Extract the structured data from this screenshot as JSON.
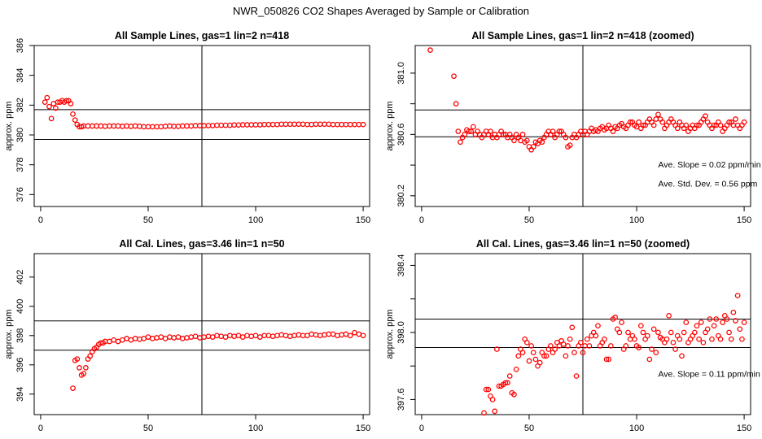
{
  "figure_title": "NWR_050826  CO2 Shapes Averaged by Sample or Calibration",
  "colors": {
    "points": "#ff0000",
    "axes": "#000000"
  },
  "chart_data": [
    {
      "type": "scatter",
      "title": "All Sample Lines, gas=1 lin=2 n=418",
      "xlabel": "",
      "ylabel": "approx. ppm",
      "xlim": [
        -3,
        153
      ],
      "ylim": [
        375.2,
        386.0
      ],
      "xticks": [
        0,
        50,
        100,
        150
      ],
      "yticks": [
        376,
        378,
        380,
        382,
        384,
        386
      ],
      "hlines": [
        381.7,
        379.7
      ],
      "vline": 75,
      "annotations": [],
      "series": [
        {
          "x": [
            2,
            3,
            4,
            5,
            6,
            7,
            8,
            9,
            10,
            11,
            12,
            13,
            14,
            15,
            16,
            17,
            18,
            19,
            20,
            22,
            24,
            26,
            28,
            30,
            32,
            34,
            36,
            38,
            40,
            42,
            44,
            46,
            48,
            50,
            52,
            54,
            56,
            58,
            60,
            62,
            64,
            66,
            68,
            70,
            72,
            74,
            76,
            78,
            80,
            82,
            84,
            86,
            88,
            90,
            92,
            94,
            96,
            98,
            100,
            102,
            104,
            106,
            108,
            110,
            112,
            114,
            116,
            118,
            120,
            122,
            124,
            126,
            128,
            130,
            132,
            134,
            136,
            138,
            140,
            142,
            144,
            146,
            148,
            150
          ],
          "y": [
            382.2,
            382.5,
            381.9,
            381.1,
            382.1,
            381.8,
            382.2,
            382.2,
            382.3,
            382.2,
            382.3,
            382.3,
            382.1,
            381.4,
            381.0,
            380.7,
            380.55,
            380.55,
            380.6,
            380.6,
            380.6,
            380.6,
            380.6,
            380.58,
            380.6,
            380.6,
            380.6,
            380.58,
            380.6,
            380.58,
            380.6,
            380.58,
            380.55,
            380.55,
            380.55,
            380.55,
            380.55,
            380.58,
            380.6,
            380.58,
            380.58,
            380.6,
            380.6,
            380.6,
            380.62,
            380.62,
            380.62,
            380.63,
            380.63,
            380.65,
            380.65,
            380.65,
            380.65,
            380.67,
            380.67,
            380.68,
            380.68,
            380.68,
            380.68,
            380.68,
            380.7,
            380.7,
            380.7,
            380.7,
            380.72,
            380.72,
            380.72,
            380.72,
            380.72,
            380.72,
            380.7,
            380.7,
            380.72,
            380.72,
            380.72,
            380.72,
            380.7,
            380.7,
            380.7,
            380.7,
            380.7,
            380.7,
            380.7,
            380.7
          ]
        }
      ]
    },
    {
      "type": "scatter",
      "title": "All Sample Lines, gas=1 lin=2 n=418 (zoomed)",
      "xlabel": "",
      "ylabel": "approx. ppm",
      "xlim": [
        -3,
        153
      ],
      "ylim": [
        380.13,
        381.18
      ],
      "xticks": [
        0,
        50,
        100,
        150
      ],
      "yticks": [
        380.2,
        380.4,
        380.6,
        380.8,
        381.0
      ],
      "ytick_labels": [
        "380.2",
        "",
        "380.6",
        "",
        "381.0"
      ],
      "hlines": [
        380.76,
        380.585
      ],
      "vline": 75,
      "annotations": [
        {
          "text": "Ave. Slope =  0.02  ppm/min",
          "x": 110,
          "y": 380.385
        },
        {
          "text": "Ave. Std. Dev. =  0.56  ppm",
          "x": 110,
          "y": 380.26
        }
      ],
      "series": [
        {
          "x": [
            4,
            15,
            16,
            17,
            18,
            19,
            20,
            21,
            22,
            23,
            24,
            25,
            26,
            27,
            28,
            29,
            30,
            31,
            32,
            33,
            34,
            35,
            36,
            37,
            38,
            39,
            40,
            41,
            42,
            43,
            44,
            45,
            46,
            47,
            48,
            49,
            50,
            51,
            52,
            53,
            54,
            55,
            56,
            57,
            58,
            59,
            60,
            61,
            62,
            63,
            64,
            65,
            66,
            67,
            68,
            69,
            70,
            71,
            72,
            73,
            74,
            75,
            76,
            77,
            78,
            79,
            80,
            81,
            82,
            83,
            84,
            85,
            86,
            87,
            88,
            89,
            90,
            91,
            92,
            93,
            94,
            95,
            96,
            97,
            98,
            99,
            100,
            101,
            102,
            103,
            104,
            105,
            106,
            107,
            108,
            109,
            110,
            111,
            112,
            113,
            114,
            115,
            116,
            117,
            118,
            119,
            120,
            121,
            122,
            123,
            124,
            125,
            126,
            127,
            128,
            129,
            130,
            131,
            132,
            133,
            134,
            135,
            136,
            137,
            138,
            139,
            140,
            141,
            142,
            143,
            144,
            145,
            146,
            147,
            148,
            149,
            150
          ],
          "y": [
            381.15,
            380.98,
            380.8,
            380.62,
            380.55,
            380.58,
            380.6,
            380.63,
            380.62,
            380.62,
            380.65,
            380.6,
            380.62,
            380.6,
            380.58,
            380.6,
            380.62,
            380.6,
            380.62,
            380.58,
            380.6,
            380.58,
            380.6,
            380.62,
            380.6,
            380.6,
            380.58,
            380.6,
            380.58,
            380.56,
            380.6,
            380.58,
            380.56,
            380.6,
            380.55,
            380.56,
            380.52,
            380.5,
            380.52,
            380.55,
            380.54,
            380.56,
            380.55,
            380.58,
            380.6,
            380.62,
            380.6,
            380.62,
            380.58,
            380.6,
            380.62,
            380.62,
            380.6,
            380.58,
            380.52,
            380.53,
            380.58,
            380.6,
            380.58,
            380.6,
            380.62,
            380.6,
            380.62,
            380.6,
            380.62,
            380.64,
            380.62,
            380.63,
            380.62,
            380.64,
            380.65,
            380.63,
            380.64,
            380.66,
            380.64,
            380.62,
            380.65,
            380.64,
            380.66,
            380.67,
            380.65,
            380.64,
            380.66,
            380.68,
            380.68,
            380.66,
            380.65,
            380.68,
            380.64,
            380.66,
            380.66,
            380.68,
            380.7,
            380.68,
            380.66,
            380.7,
            380.73,
            380.7,
            380.68,
            380.64,
            380.66,
            380.68,
            380.7,
            380.68,
            380.66,
            380.64,
            380.68,
            380.66,
            380.64,
            380.66,
            380.62,
            380.64,
            380.66,
            380.64,
            380.66,
            380.66,
            380.68,
            380.7,
            380.72,
            380.68,
            380.66,
            380.64,
            380.66,
            380.66,
            380.68,
            380.66,
            380.62,
            380.64,
            380.66,
            380.68,
            380.68,
            380.66,
            380.7,
            380.66,
            380.64,
            380.66,
            380.68
          ]
        }
      ]
    },
    {
      "type": "scatter",
      "title": "All Cal. Lines, gas=3.46 lin=1 n=50",
      "xlabel": "",
      "ylabel": "approx. ppm",
      "xlim": [
        -3,
        153
      ],
      "ylim": [
        392.6,
        403.6
      ],
      "xticks": [
        0,
        50,
        100,
        150
      ],
      "yticks": [
        394,
        396,
        398,
        400,
        402
      ],
      "hlines": [
        399.0,
        397.0
      ],
      "vline": 75,
      "annotations": [],
      "series": [
        {
          "x": [
            15,
            16,
            17,
            18,
            19,
            20,
            21,
            22,
            23,
            24,
            25,
            26,
            27,
            28,
            29,
            30,
            32,
            34,
            36,
            38,
            40,
            42,
            44,
            46,
            48,
            50,
            52,
            54,
            56,
            58,
            60,
            62,
            64,
            66,
            68,
            70,
            72,
            74,
            76,
            78,
            80,
            82,
            84,
            86,
            88,
            90,
            92,
            94,
            96,
            98,
            100,
            102,
            104,
            106,
            108,
            110,
            112,
            114,
            116,
            118,
            120,
            122,
            124,
            126,
            128,
            130,
            132,
            134,
            136,
            138,
            140,
            142,
            144,
            146,
            148,
            150
          ],
          "y": [
            394.4,
            396.3,
            396.4,
            395.8,
            395.3,
            395.4,
            395.8,
            396.4,
            396.6,
            396.9,
            397.1,
            397.2,
            397.4,
            397.5,
            397.5,
            397.6,
            397.6,
            397.7,
            397.6,
            397.7,
            397.8,
            397.7,
            397.8,
            397.75,
            397.8,
            397.9,
            397.8,
            397.85,
            397.9,
            397.8,
            397.9,
            397.85,
            397.9,
            397.8,
            397.85,
            397.9,
            397.95,
            397.85,
            397.9,
            397.95,
            397.9,
            398.0,
            397.95,
            397.9,
            398.0,
            397.95,
            398.0,
            397.9,
            398.0,
            397.95,
            398.0,
            397.9,
            398.0,
            398.0,
            397.95,
            398.0,
            398.05,
            398.0,
            397.95,
            398.0,
            398.05,
            398.0,
            398.0,
            398.1,
            398.05,
            398.0,
            398.05,
            398.1,
            398.1,
            398.0,
            398.05,
            398.1,
            398.0,
            398.2,
            398.1,
            398.0
          ]
        }
      ]
    },
    {
      "type": "scatter",
      "title": "All Cal. Lines, gas=3.46 lin=1 n=50 (zoomed)",
      "xlabel": "",
      "ylabel": "approx. ppm",
      "xlim": [
        -3,
        153
      ],
      "ylim": [
        397.51,
        398.47
      ],
      "xticks": [
        0,
        50,
        100,
        150
      ],
      "yticks": [
        397.6,
        397.8,
        398.0,
        398.2,
        398.4
      ],
      "ytick_labels": [
        "397.6",
        "",
        "398.0",
        "",
        "398.4"
      ],
      "hlines": [
        398.08,
        397.91
      ],
      "vline": 75,
      "annotations": [
        {
          "text": "Ave. Slope =  0.11  ppm/min",
          "x": 110,
          "y": 397.735
        }
      ],
      "series": [
        {
          "x": [
            29,
            30,
            31,
            32,
            33,
            34,
            35,
            36,
            37,
            38,
            39,
            40,
            41,
            42,
            43,
            44,
            45,
            46,
            47,
            48,
            49,
            50,
            51,
            52,
            53,
            54,
            55,
            56,
            57,
            58,
            59,
            60,
            61,
            62,
            63,
            64,
            65,
            66,
            67,
            68,
            69,
            70,
            71,
            72,
            73,
            74,
            75,
            76,
            77,
            78,
            79,
            80,
            81,
            82,
            83,
            84,
            85,
            86,
            87,
            88,
            89,
            90,
            91,
            92,
            93,
            94,
            95,
            96,
            97,
            98,
            99,
            100,
            101,
            102,
            103,
            104,
            105,
            106,
            107,
            108,
            109,
            110,
            111,
            112,
            113,
            114,
            115,
            116,
            117,
            118,
            119,
            120,
            121,
            122,
            123,
            124,
            125,
            126,
            127,
            128,
            129,
            130,
            131,
            132,
            133,
            134,
            135,
            136,
            137,
            138,
            139,
            140,
            141,
            142,
            143,
            144,
            145,
            146,
            147,
            148,
            149,
            150
          ],
          "y": [
            397.52,
            397.66,
            397.66,
            397.62,
            397.6,
            397.53,
            397.9,
            397.68,
            397.68,
            397.69,
            397.7,
            397.7,
            397.74,
            397.64,
            397.63,
            397.78,
            397.86,
            397.9,
            397.88,
            397.96,
            397.94,
            397.83,
            397.92,
            397.88,
            397.84,
            397.8,
            397.82,
            397.88,
            397.86,
            397.86,
            397.9,
            397.92,
            397.88,
            397.9,
            397.94,
            397.92,
            397.95,
            397.93,
            397.86,
            397.92,
            397.96,
            398.03,
            397.88,
            397.74,
            397.92,
            397.94,
            397.88,
            397.92,
            397.96,
            397.92,
            397.98,
            398.0,
            397.98,
            398.04,
            397.92,
            397.94,
            397.96,
            397.84,
            397.84,
            397.92,
            398.08,
            398.09,
            398.02,
            398.0,
            398.06,
            397.9,
            397.92,
            398.0,
            397.96,
            397.98,
            397.96,
            397.92,
            397.91,
            398.04,
            398.0,
            397.96,
            397.98,
            397.84,
            397.9,
            398.02,
            397.88,
            398.0,
            397.97,
            397.96,
            397.94,
            397.96,
            398.1,
            398.0,
            397.94,
            397.9,
            397.98,
            397.96,
            397.86,
            398.0,
            398.06,
            397.94,
            397.96,
            397.98,
            398.0,
            398.04,
            397.96,
            398.06,
            397.94,
            398.0,
            398.02,
            398.08,
            397.96,
            398.04,
            398.08,
            397.98,
            397.96,
            398.06,
            398.1,
            398.08,
            398.0,
            397.96,
            398.12,
            398.07,
            398.22,
            398.02,
            397.96,
            398.06
          ]
        }
      ]
    }
  ]
}
